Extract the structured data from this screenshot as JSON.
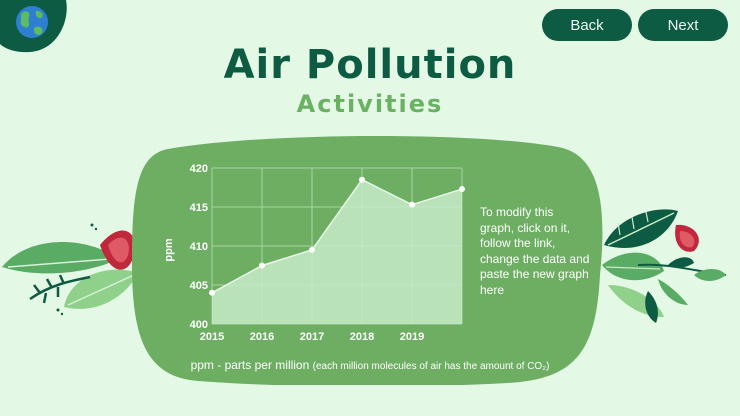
{
  "nav": {
    "back_label": "Back",
    "next_label": "Next"
  },
  "header": {
    "title": "Air Pollution",
    "subtitle": "Activities"
  },
  "note": "To modify this graph, click on it, follow the link, change the  data and paste the new graph here",
  "caption": {
    "main": "ppm - parts per million",
    "detail": "(each million molecules of air has the amount of CO₂)"
  },
  "colors": {
    "dark_green": "#0e5b43",
    "mid_green": "#6ab164",
    "light_bg": "#e4f8e6",
    "panel": "#6dae63"
  },
  "icons": [
    "globe-icon"
  ],
  "chart_data": {
    "type": "area",
    "x": [
      2015,
      2016,
      2017,
      2018,
      2019,
      2020
    ],
    "x_tick_labels": [
      "2015",
      "2016",
      "2017",
      "2018",
      "2019"
    ],
    "values": [
      404,
      407.5,
      409.5,
      418.5,
      415.3,
      417.3
    ],
    "ylabel": "ppm",
    "ylim": [
      400,
      420
    ],
    "y_ticks": [
      400,
      405,
      410,
      415,
      420
    ],
    "grid": true
  }
}
